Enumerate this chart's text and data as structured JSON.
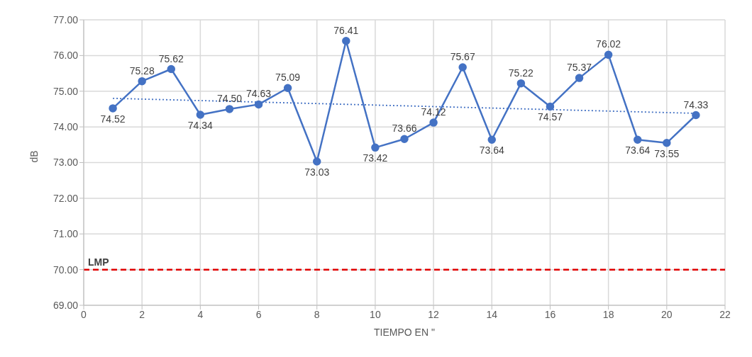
{
  "chart_data": {
    "type": "line",
    "xlabel": "TIEMPO EN \"",
    "ylabel": "dB",
    "x": [
      1,
      2,
      3,
      4,
      5,
      6,
      7,
      8,
      9,
      10,
      11,
      12,
      13,
      14,
      15,
      16,
      17,
      18,
      19,
      20,
      21
    ],
    "series": [
      {
        "color": "#4472c4",
        "marker": "circle",
        "line_style": "solid",
        "values": [
          74.52,
          75.28,
          75.62,
          74.34,
          74.5,
          74.63,
          75.09,
          73.03,
          76.41,
          73.42,
          73.66,
          74.12,
          75.67,
          73.64,
          75.22,
          74.57,
          75.37,
          76.02,
          73.64,
          73.55,
          74.33
        ],
        "value_labels": [
          "74.52",
          "75.28",
          "75.62",
          "74.34",
          "74.50",
          "74.63",
          "75.09",
          "73.03",
          "76.41",
          "73.42",
          "73.66",
          "74.12",
          "75.67",
          "73.64",
          "75.22",
          "74.57",
          "75.37",
          "76.02",
          "73.64",
          "73.55",
          "74.33"
        ]
      },
      {
        "color": "#4472c4",
        "marker": "none",
        "line_style": "dotted",
        "x": [
          1,
          21
        ],
        "values": [
          74.8,
          74.38
        ]
      }
    ],
    "ref_lines": [
      {
        "axis": "y",
        "value": 70,
        "label": "LMP",
        "color": "#e00000",
        "line_style": "dashed"
      }
    ],
    "xlim": [
      0,
      22
    ],
    "xticks": [
      0,
      2,
      4,
      6,
      8,
      10,
      12,
      14,
      16,
      18,
      20,
      22
    ],
    "ylim": [
      69,
      77
    ],
    "yticks": [
      {
        "value": 69,
        "label": "69.00"
      },
      {
        "value": 70,
        "label": "70.00"
      },
      {
        "value": 71,
        "label": "71.00"
      },
      {
        "value": 72,
        "label": "72.00"
      },
      {
        "value": 73,
        "label": "73.00"
      },
      {
        "value": 74,
        "label": "74.00"
      },
      {
        "value": 75,
        "label": "75.00"
      },
      {
        "value": 76,
        "label": "76.00"
      },
      {
        "value": 77,
        "label": "77.00"
      }
    ],
    "grid": true
  }
}
